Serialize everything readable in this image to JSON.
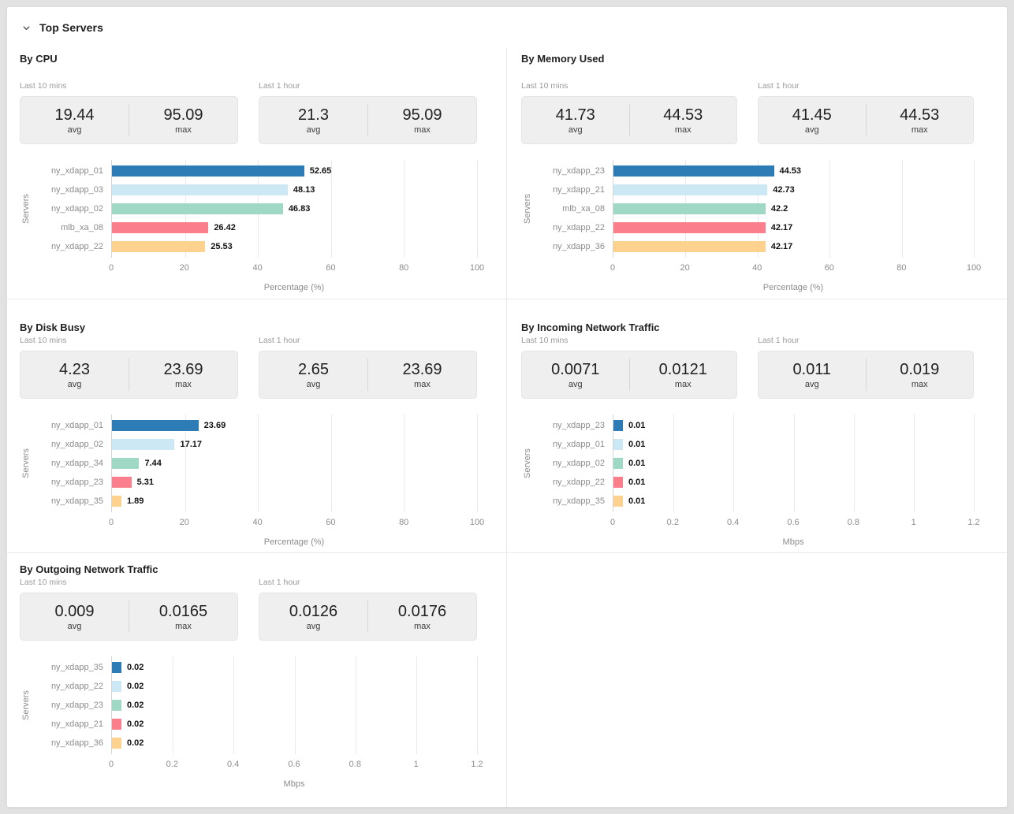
{
  "header": {
    "title": "Top Servers",
    "icon": "chevron-down-icon"
  },
  "colors": {
    "page_bg": "#e2e2e2",
    "card_bg": "#ffffff",
    "panel_divider": "#e9e9e9",
    "stat_box_bg": "#efefef",
    "grid_line": "#e9e9e9",
    "axis_line": "#d5d5d5",
    "muted_text": "#8c8c8c",
    "bar_palette": [
      "#2e7cb5",
      "#cde8f5",
      "#9fd9c5",
      "#fb7e8c",
      "#fdd28f"
    ]
  },
  "stat_value_labels": {
    "avg": "avg",
    "max": "max"
  },
  "panels": [
    {
      "title": "By CPU",
      "stats": [
        {
          "period": "Last 10 mins",
          "avg": "19.44",
          "max": "95.09"
        },
        {
          "period": "Last 1 hour",
          "avg": "21.3",
          "max": "95.09"
        }
      ],
      "chart_data": {
        "type": "bar",
        "orientation": "horizontal",
        "categories": [
          "ny_xdapp_01",
          "ny_xdapp_03",
          "ny_xdapp_02",
          "mlb_xa_08",
          "ny_xdapp_22"
        ],
        "values": [
          52.65,
          48.13,
          46.83,
          26.42,
          25.53
        ],
        "value_labels": [
          "52.65",
          "48.13",
          "46.83",
          "26.42",
          "25.53"
        ],
        "xlabel": "Percentage (%)",
        "ylabel": "Servers",
        "xlim": [
          0,
          100
        ],
        "xticks": [
          "0",
          "20",
          "40",
          "60",
          "80",
          "100"
        ],
        "grid": true
      }
    },
    {
      "title": "By Memory Used",
      "stats": [
        {
          "period": "Last 10 mins",
          "avg": "41.73",
          "max": "44.53"
        },
        {
          "period": "Last 1 hour",
          "avg": "41.45",
          "max": "44.53"
        }
      ],
      "chart_data": {
        "type": "bar",
        "orientation": "horizontal",
        "categories": [
          "ny_xdapp_23",
          "ny_xdapp_21",
          "mlb_xa_08",
          "ny_xdapp_22",
          "ny_xdapp_36"
        ],
        "values": [
          44.53,
          42.73,
          42.2,
          42.17,
          42.17
        ],
        "value_labels": [
          "44.53",
          "42.73",
          "42.2",
          "42.17",
          "42.17"
        ],
        "xlabel": "Percentage (%)",
        "ylabel": "Servers",
        "xlim": [
          0,
          100
        ],
        "xticks": [
          "0",
          "20",
          "40",
          "60",
          "80",
          "100"
        ],
        "grid": true
      }
    },
    {
      "title": "By Disk Busy",
      "stats": [
        {
          "period": "Last 10 mins",
          "avg": "4.23",
          "max": "23.69"
        },
        {
          "period": "Last 1 hour",
          "avg": "2.65",
          "max": "23.69"
        }
      ],
      "chart_data": {
        "type": "bar",
        "orientation": "horizontal",
        "categories": [
          "ny_xdapp_01",
          "ny_xdapp_02",
          "ny_xdapp_34",
          "ny_xdapp_23",
          "ny_xdapp_35"
        ],
        "values": [
          23.69,
          17.17,
          7.44,
          5.31,
          1.89
        ],
        "value_labels": [
          "23.69",
          "17.17",
          "7.44",
          "5.31",
          "1.89"
        ],
        "xlabel": "Percentage (%)",
        "ylabel": "Servers",
        "xlim": [
          0,
          100
        ],
        "xticks": [
          "0",
          "20",
          "40",
          "60",
          "80",
          "100"
        ],
        "grid": true
      }
    },
    {
      "title": "By Incoming Network Traffic",
      "stats": [
        {
          "period": "Last 10 mins",
          "avg": "0.0071",
          "max": "0.0121"
        },
        {
          "period": "Last 1 hour",
          "avg": "0.011",
          "max": "0.019"
        }
      ],
      "chart_data": {
        "type": "bar",
        "orientation": "horizontal",
        "categories": [
          "ny_xdapp_23",
          "ny_xdapp_01",
          "ny_xdapp_02",
          "ny_xdapp_22",
          "ny_xdapp_35"
        ],
        "values": [
          0.01,
          0.01,
          0.01,
          0.01,
          0.01
        ],
        "value_labels": [
          "0.01",
          "0.01",
          "0.01",
          "0.01",
          "0.01"
        ],
        "xlabel": "Mbps",
        "ylabel": "Servers",
        "xlim": [
          0,
          1.2
        ],
        "xticks": [
          "0",
          "0.2",
          "0.4",
          "0.6",
          "0.8",
          "1",
          "1.2"
        ],
        "grid": true
      }
    },
    {
      "title": "By Outgoing Network Traffic",
      "stats": [
        {
          "period": "Last 10 mins",
          "avg": "0.009",
          "max": "0.0165"
        },
        {
          "period": "Last 1 hour",
          "avg": "0.0126",
          "max": "0.0176"
        }
      ],
      "chart_data": {
        "type": "bar",
        "orientation": "horizontal",
        "categories": [
          "ny_xdapp_35",
          "ny_xdapp_22",
          "ny_xdapp_23",
          "ny_xdapp_21",
          "ny_xdapp_36"
        ],
        "values": [
          0.02,
          0.02,
          0.02,
          0.02,
          0.02
        ],
        "value_labels": [
          "0.02",
          "0.02",
          "0.02",
          "0.02",
          "0.02"
        ],
        "xlabel": "Mbps",
        "ylabel": "Servers",
        "xlim": [
          0,
          1.2
        ],
        "xticks": [
          "0",
          "0.2",
          "0.4",
          "0.6",
          "0.8",
          "1",
          "1.2"
        ],
        "grid": true
      }
    }
  ]
}
